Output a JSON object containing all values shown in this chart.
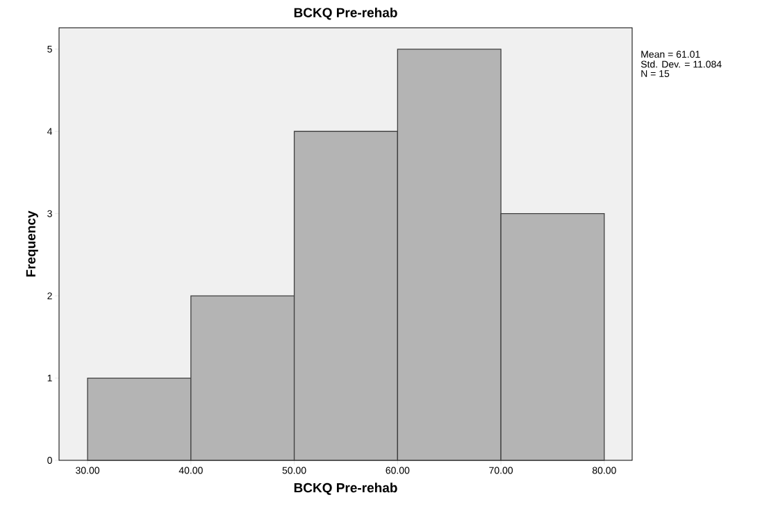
{
  "chart_data": {
    "type": "histogram",
    "title": "BCKQ Pre-rehab",
    "xlabel": "BCKQ Pre-rehab",
    "ylabel": "Frequency",
    "bins": [
      30,
      40,
      50,
      60,
      70,
      80
    ],
    "values": [
      1,
      2,
      4,
      5,
      3
    ],
    "color": "#b4b4b4",
    "xlim": [
      27.24,
      82.7
    ],
    "ylim": [
      0,
      5.26
    ],
    "xticks": [
      {
        "value": 30,
        "label": "30.00"
      },
      {
        "value": 40,
        "label": "40.00"
      },
      {
        "value": 50,
        "label": "50.00"
      },
      {
        "value": 60,
        "label": "60.00"
      },
      {
        "value": 70,
        "label": "70.00"
      },
      {
        "value": 80,
        "label": "80.00"
      }
    ],
    "yticks": [
      0,
      1,
      2,
      3,
      4,
      5
    ],
    "annotations": [
      "Mean = 61.01",
      "Std. Dev. = 11.084",
      "N = 15"
    ]
  }
}
